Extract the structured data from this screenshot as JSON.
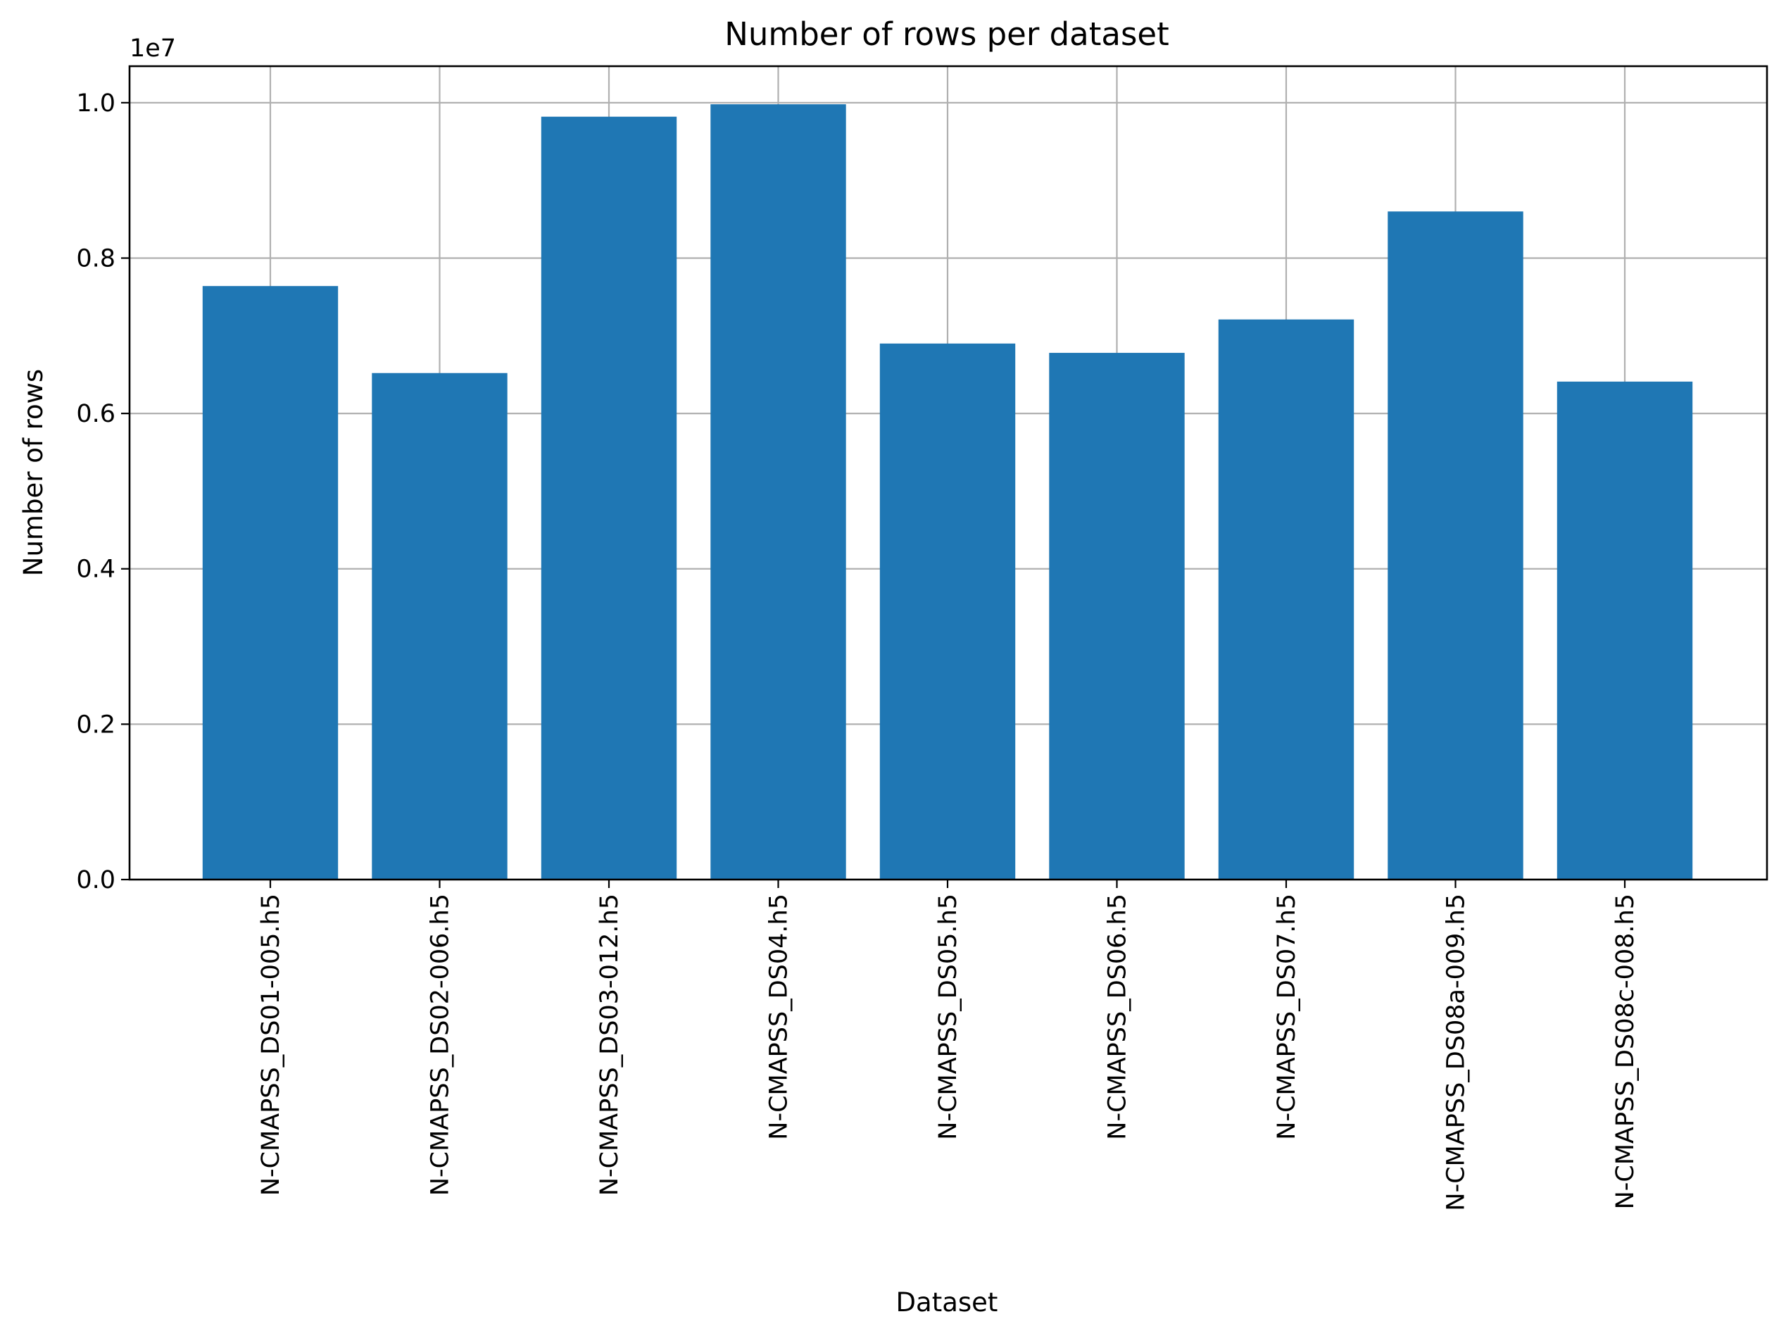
{
  "chart_data": {
    "type": "bar",
    "title": "Number of rows per dataset",
    "xlabel": "Dataset",
    "ylabel": "Number of rows",
    "offset_label": "1e7",
    "categories": [
      "N-CMAPSS_DS01-005.h5",
      "N-CMAPSS_DS02-006.h5",
      "N-CMAPSS_DS03-012.h5",
      "N-CMAPSS_DS04.h5",
      "N-CMAPSS_DS05.h5",
      "N-CMAPSS_DS06.h5",
      "N-CMAPSS_DS07.h5",
      "N-CMAPSS_DS08a-009.h5",
      "N-CMAPSS_DS08c-008.h5"
    ],
    "values": [
      7640000,
      6520000,
      9820000,
      9980000,
      6900000,
      6780000,
      7210000,
      8600000,
      6410000
    ],
    "ylim": [
      0,
      10470000
    ],
    "yticks": [
      0,
      2000000,
      4000000,
      6000000,
      8000000,
      10000000
    ],
    "ytick_labels": [
      "0.0",
      "0.2",
      "0.4",
      "0.6",
      "0.8",
      "1.0"
    ],
    "grid": true,
    "bar_color": "#1f77b4"
  }
}
